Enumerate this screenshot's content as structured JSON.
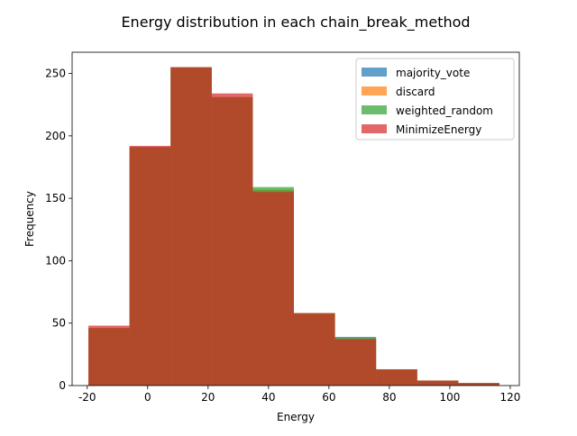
{
  "chart_data": {
    "type": "bar",
    "title": "Energy distribution in each chain_break_method",
    "xlabel": "Energy",
    "ylabel": "Frequency",
    "xlim": [
      -25,
      123
    ],
    "ylim": [
      0,
      267
    ],
    "xticks": [
      -20,
      0,
      20,
      40,
      60,
      80,
      100,
      120
    ],
    "yticks": [
      0,
      50,
      100,
      150,
      200,
      250
    ],
    "bin_edges": [
      -19.6,
      -6.0,
      7.6,
      21.2,
      34.8,
      48.4,
      62.0,
      75.6,
      89.2,
      102.8,
      116.4
    ],
    "legend_position": "top-right",
    "series": [
      {
        "name": "majority_vote",
        "color": "#1f77b4",
        "values": [
          46,
          191,
          255,
          231,
          156,
          58,
          39,
          13,
          4,
          2
        ]
      },
      {
        "name": "discard",
        "color": "#ff7f0e",
        "values": [
          46,
          191,
          255,
          231,
          157,
          58,
          38,
          13,
          4,
          2
        ]
      },
      {
        "name": "weighted_random",
        "color": "#2ca02c",
        "values": [
          46,
          191,
          255,
          231,
          159,
          58,
          38,
          13,
          4,
          2
        ]
      },
      {
        "name": "MinimizeEnergy",
        "color": "#d62728",
        "values": [
          48,
          192,
          255,
          234,
          155,
          58,
          37,
          13,
          4,
          2
        ]
      }
    ]
  }
}
